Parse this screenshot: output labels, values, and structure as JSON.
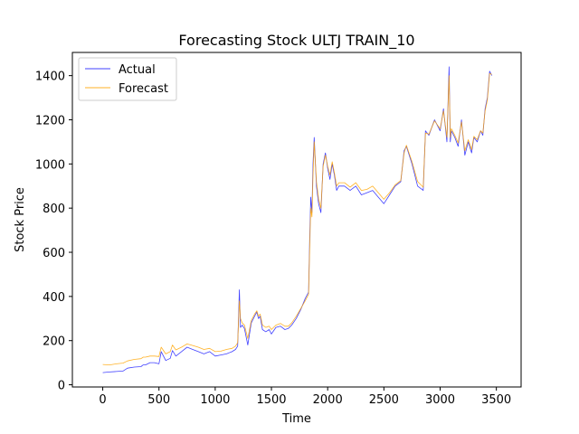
{
  "chart_data": {
    "type": "line",
    "title": "Forecasting Stock ULTJ TRAIN_10",
    "xlabel": "Time",
    "ylabel": "Stock Price",
    "xlim": [
      -270,
      3720
    ],
    "ylim": [
      -10,
      1505
    ],
    "xticks": [
      0,
      500,
      1000,
      1500,
      2000,
      2500,
      3000,
      3500
    ],
    "yticks": [
      0,
      200,
      400,
      600,
      800,
      1000,
      1200,
      1400
    ],
    "grid": false,
    "legend_position": "top-left",
    "series": [
      {
        "name": "Actual",
        "color": "#0000ff",
        "x": [
          0,
          60,
          120,
          180,
          220,
          280,
          340,
          360,
          380,
          420,
          460,
          500,
          520,
          560,
          600,
          620,
          650,
          700,
          750,
          800,
          850,
          900,
          950,
          1000,
          1050,
          1100,
          1150,
          1180,
          1200,
          1215,
          1225,
          1240,
          1260,
          1290,
          1320,
          1350,
          1370,
          1385,
          1400,
          1420,
          1450,
          1480,
          1500,
          1540,
          1580,
          1620,
          1650,
          1680,
          1720,
          1760,
          1800,
          1830,
          1840,
          1850,
          1860,
          1870,
          1880,
          1900,
          1920,
          1940,
          1960,
          1980,
          2000,
          2020,
          2040,
          2060,
          2080,
          2100,
          2150,
          2200,
          2250,
          2300,
          2350,
          2400,
          2450,
          2500,
          2550,
          2600,
          2650,
          2680,
          2700,
          2750,
          2800,
          2850,
          2870,
          2900,
          2950,
          3000,
          3030,
          3060,
          3080,
          3090,
          3100,
          3130,
          3160,
          3190,
          3220,
          3250,
          3280,
          3300,
          3330,
          3360,
          3380,
          3400,
          3420,
          3440,
          3460
        ],
        "y": [
          55,
          58,
          60,
          62,
          75,
          80,
          82,
          90,
          90,
          100,
          100,
          95,
          150,
          110,
          120,
          155,
          130,
          150,
          170,
          160,
          150,
          140,
          150,
          130,
          135,
          140,
          150,
          160,
          175,
          430,
          260,
          270,
          255,
          180,
          280,
          310,
          330,
          300,
          310,
          250,
          240,
          250,
          230,
          260,
          265,
          250,
          255,
          270,
          300,
          340,
          390,
          420,
          650,
          850,
          780,
          1000,
          1120,
          900,
          820,
          780,
          1000,
          1050,
          980,
          930,
          1000,
          950,
          880,
          900,
          900,
          880,
          900,
          860,
          870,
          880,
          850,
          820,
          860,
          900,
          920,
          1060,
          1080,
          1000,
          900,
          880,
          1150,
          1130,
          1200,
          1150,
          1250,
          1100,
          1440,
          1100,
          1150,
          1120,
          1080,
          1200,
          1040,
          1100,
          1050,
          1120,
          1100,
          1150,
          1130,
          1250,
          1300,
          1420,
          1400
        ]
      },
      {
        "name": "Forecast",
        "color": "#ffa500",
        "x": [
          0,
          60,
          120,
          180,
          220,
          280,
          340,
          360,
          380,
          420,
          460,
          500,
          520,
          560,
          600,
          620,
          650,
          700,
          750,
          800,
          850,
          900,
          950,
          1000,
          1050,
          1100,
          1150,
          1180,
          1200,
          1215,
          1225,
          1240,
          1260,
          1290,
          1320,
          1350,
          1370,
          1385,
          1400,
          1420,
          1450,
          1480,
          1500,
          1540,
          1580,
          1620,
          1650,
          1680,
          1720,
          1760,
          1800,
          1830,
          1840,
          1850,
          1860,
          1870,
          1880,
          1900,
          1920,
          1940,
          1960,
          1980,
          2000,
          2020,
          2040,
          2060,
          2080,
          2100,
          2150,
          2200,
          2250,
          2300,
          2350,
          2400,
          2450,
          2500,
          2550,
          2600,
          2650,
          2680,
          2700,
          2750,
          2800,
          2850,
          2870,
          2900,
          2950,
          3000,
          3030,
          3060,
          3080,
          3090,
          3100,
          3130,
          3160,
          3190,
          3220,
          3250,
          3280,
          3300,
          3330,
          3360,
          3380,
          3400,
          3420,
          3440,
          3460
        ],
        "y": [
          92,
          90,
          95,
          98,
          108,
          115,
          118,
          125,
          125,
          130,
          130,
          128,
          170,
          140,
          150,
          180,
          158,
          170,
          185,
          178,
          170,
          160,
          165,
          150,
          152,
          160,
          165,
          175,
          190,
          380,
          300,
          280,
          270,
          210,
          290,
          320,
          335,
          310,
          320,
          270,
          260,
          265,
          250,
          270,
          278,
          265,
          265,
          280,
          310,
          345,
          380,
          410,
          620,
          800,
          760,
          950,
          1100,
          920,
          840,
          800,
          990,
          1040,
          990,
          950,
          1010,
          960,
          900,
          915,
          915,
          895,
          915,
          880,
          885,
          900,
          870,
          840,
          870,
          905,
          925,
          1050,
          1085,
          1010,
          920,
          895,
          1140,
          1135,
          1195,
          1160,
          1240,
          1120,
          1400,
          1120,
          1160,
          1130,
          1095,
          1190,
          1060,
          1110,
          1065,
          1125,
          1110,
          1150,
          1140,
          1240,
          1290,
          1410,
          1405
        ]
      }
    ]
  }
}
